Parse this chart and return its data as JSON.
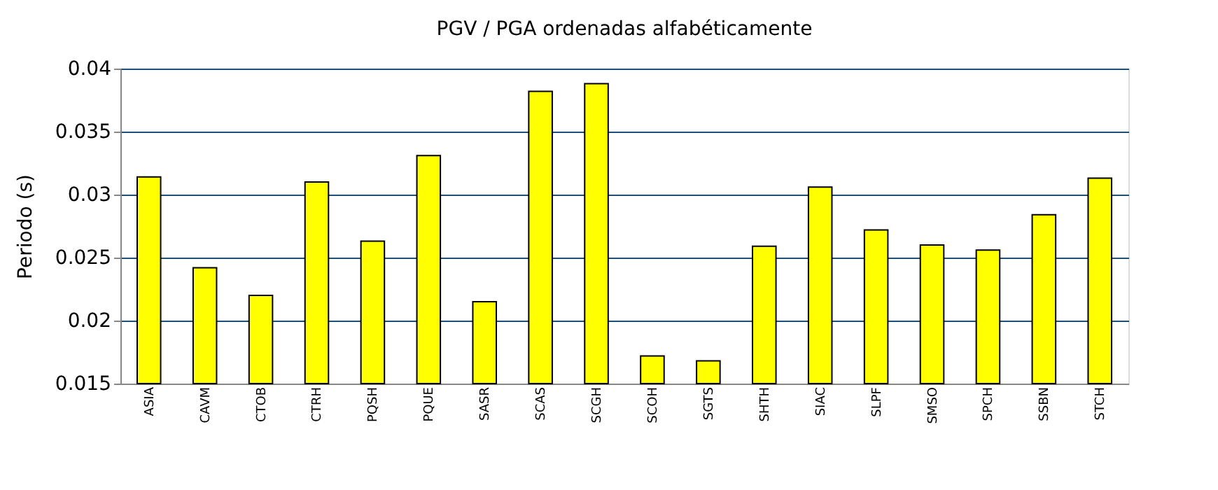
{
  "chart_data": {
    "type": "bar",
    "title": "PGV / PGA ordenadas alfabéticamente",
    "ylabel": "Periodo (s)",
    "categories": [
      "ASIA",
      "CAVM",
      "CTOB",
      "CTRH",
      "PQSH",
      "PQUE",
      "SASR",
      "SCAS",
      "SCGH",
      "SCOH",
      "SGTS",
      "SHTH",
      "SIAC",
      "SLPF",
      "SMSO",
      "SPCH",
      "SSBN",
      "STCH"
    ],
    "values": [
      0.0314,
      0.0242,
      0.022,
      0.031,
      0.0263,
      0.0331,
      0.0215,
      0.0382,
      0.0388,
      0.0172,
      0.0168,
      0.0259,
      0.0306,
      0.0272,
      0.026,
      0.0256,
      0.0284,
      0.0313
    ],
    "color": "#ffff00",
    "ylim": [
      0.015,
      0.04
    ],
    "yticks": [
      0.015,
      0.02,
      0.025,
      0.03,
      0.035,
      0.04
    ],
    "grid": "y"
  }
}
